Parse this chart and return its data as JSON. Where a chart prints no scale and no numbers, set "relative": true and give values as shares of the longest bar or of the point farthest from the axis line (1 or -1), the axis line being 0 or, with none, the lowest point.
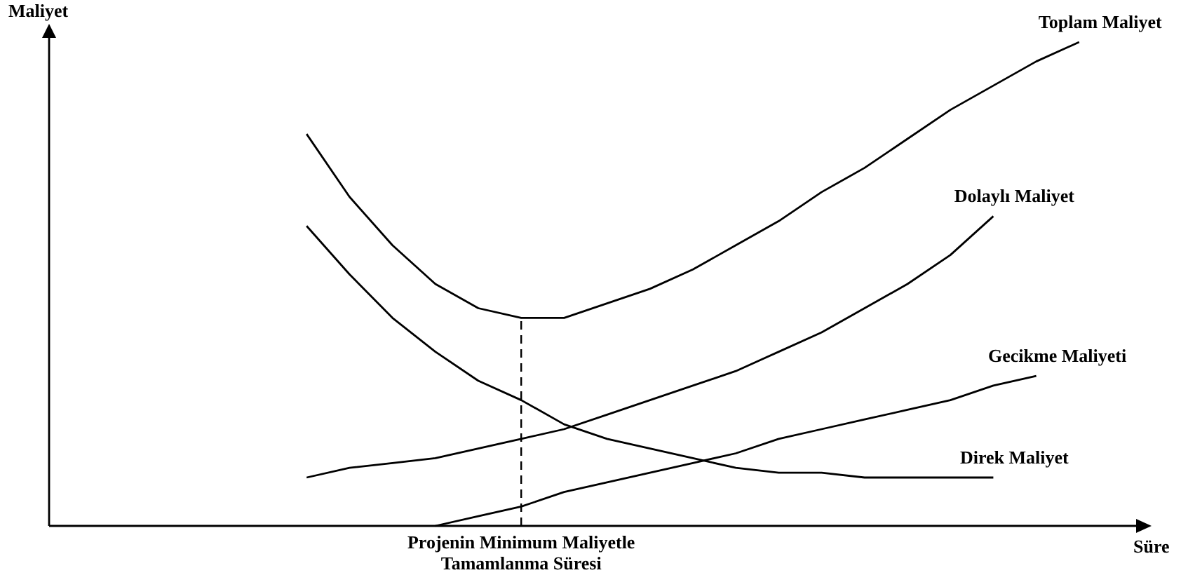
{
  "chart_data": {
    "type": "line",
    "relative": true,
    "xlabel": "Süre",
    "ylabel": "Maliyet",
    "legend": false,
    "grid": false,
    "categories": [
      null,
      null,
      null,
      null,
      null,
      null,
      null,
      null,
      null,
      null,
      null,
      null,
      null,
      null,
      null,
      null,
      null,
      null,
      null,
      null,
      null,
      null,
      null,
      null,
      null,
      null
    ],
    "series": [
      {
        "name": "Toplam Maliyet",
        "color": "#000000",
        "values": [
          null,
          null,
          null,
          null,
          null,
          null,
          0.81,
          0.68,
          0.58,
          0.5,
          0.45,
          0.43,
          0.43,
          0.46,
          0.49,
          0.53,
          0.58,
          0.63,
          0.69,
          0.74,
          0.8,
          0.86,
          0.91,
          0.96,
          1,
          null
        ]
      },
      {
        "name": "Dolaylı Maliyet",
        "color": "#000000",
        "values": [
          null,
          null,
          null,
          null,
          null,
          null,
          0.1,
          0.12,
          0.13,
          0.14,
          0.16,
          0.18,
          0.2,
          0.23,
          0.26,
          0.29,
          0.32,
          0.36,
          0.4,
          0.45,
          0.5,
          0.56,
          0.64,
          null,
          null,
          null
        ]
      },
      {
        "name": "Gecikme Maliyeti",
        "color": "#000000",
        "values": [
          null,
          null,
          null,
          null,
          null,
          null,
          null,
          null,
          null,
          0,
          0.02,
          0.04,
          0.07,
          0.09,
          0.11,
          0.13,
          0.15,
          0.18,
          0.2,
          0.22,
          0.24,
          0.26,
          0.29,
          0.31,
          null,
          null
        ]
      },
      {
        "name": "Direk Maliyet",
        "color": "#000000",
        "values": [
          null,
          null,
          null,
          null,
          null,
          null,
          0.62,
          0.52,
          0.43,
          0.36,
          0.3,
          0.26,
          0.21,
          0.18,
          0.16,
          0.14,
          0.12,
          0.11,
          0.11,
          0.1,
          0.1,
          0.1,
          0.1,
          null,
          null,
          null
        ]
      }
    ],
    "annotations": [
      "Projenin Minimum Maliyetle\nTamamlanma Süresi"
    ]
  }
}
